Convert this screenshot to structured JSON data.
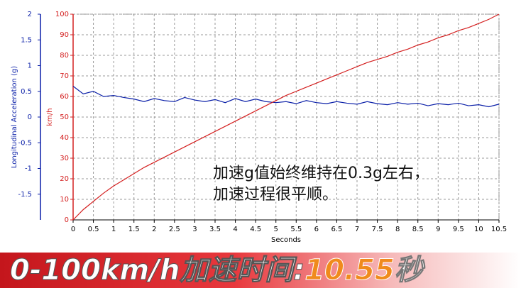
{
  "chart_data": {
    "type": "line",
    "y_label": "Longitudinal Acceleration (g)",
    "y2_label": "km/h",
    "x_label": "Seconds",
    "x": [
      0,
      0.25,
      0.5,
      0.75,
      1,
      1.25,
      1.5,
      1.75,
      2,
      2.25,
      2.5,
      2.75,
      3,
      3.25,
      3.5,
      3.75,
      4,
      4.25,
      4.5,
      4.75,
      5,
      5.25,
      5.5,
      5.75,
      6,
      6.25,
      6.5,
      6.75,
      7,
      7.25,
      7.5,
      7.75,
      8,
      8.25,
      8.5,
      8.75,
      9,
      9.25,
      9.5,
      9.75,
      10,
      10.25,
      10.5
    ],
    "series": [
      {
        "name": "Longitudinal Acceleration",
        "color": "#0a1fa8",
        "axis": "y",
        "values": [
          0.6,
          0.45,
          0.5,
          0.4,
          0.42,
          0.38,
          0.35,
          0.3,
          0.36,
          0.32,
          0.3,
          0.38,
          0.33,
          0.3,
          0.34,
          0.28,
          0.36,
          0.3,
          0.35,
          0.3,
          0.28,
          0.3,
          0.26,
          0.32,
          0.28,
          0.26,
          0.3,
          0.27,
          0.25,
          0.3,
          0.26,
          0.24,
          0.28,
          0.25,
          0.27,
          0.22,
          0.26,
          0.24,
          0.27,
          0.22,
          0.24,
          0.2,
          0.25
        ]
      },
      {
        "name": "km/h",
        "color": "#d42020",
        "axis": "y2",
        "values": [
          0,
          5,
          9,
          13,
          16.5,
          19.5,
          22.5,
          25.5,
          28,
          30.5,
          33,
          35.5,
          38,
          40.5,
          43,
          45.5,
          48,
          50.5,
          53,
          55.5,
          58,
          60.5,
          62.5,
          64.5,
          66.5,
          68.5,
          70.5,
          72.5,
          74.5,
          76.5,
          78,
          79.5,
          81.5,
          83,
          85,
          86.5,
          88.5,
          90,
          92,
          93.5,
          95.5,
          97.5,
          100
        ]
      }
    ],
    "xlim": [
      0,
      10.5
    ],
    "xticks": [
      0,
      0.5,
      1,
      1.5,
      2,
      2.5,
      3,
      3.5,
      4,
      4.5,
      5,
      5.5,
      6,
      6.5,
      7,
      7.5,
      8,
      8.5,
      9,
      9.5,
      10,
      10.5
    ],
    "ylim": [
      -2,
      2
    ],
    "yticks": [
      -1.5,
      -1,
      -0.5,
      0,
      0.5,
      1,
      1.5,
      2
    ],
    "y2lim": [
      0,
      100
    ],
    "y2ticks": [
      0,
      10,
      20,
      30,
      40,
      50,
      60,
      70,
      80,
      90,
      100
    ],
    "grid": true,
    "annotations": [
      "加速g值始终维持在0.3g左右，",
      "加速过程很平顺。"
    ]
  },
  "banner": {
    "label": "0-100km/h加速时间:",
    "value": "10.55",
    "unit": "秒"
  }
}
